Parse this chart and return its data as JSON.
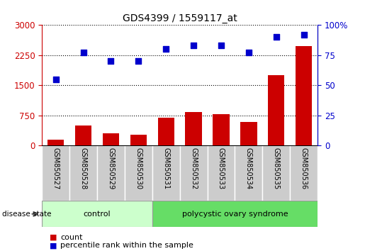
{
  "title": "GDS4399 / 1559117_at",
  "samples": [
    "GSM850527",
    "GSM850528",
    "GSM850529",
    "GSM850530",
    "GSM850531",
    "GSM850532",
    "GSM850533",
    "GSM850534",
    "GSM850535",
    "GSM850536"
  ],
  "counts": [
    150,
    500,
    310,
    270,
    700,
    830,
    780,
    590,
    1750,
    2480
  ],
  "percentiles": [
    55,
    77,
    70,
    70,
    80,
    83,
    83,
    77,
    90,
    92
  ],
  "bar_color": "#CC0000",
  "dot_color": "#0000CC",
  "left_yticks": [
    0,
    750,
    1500,
    2250,
    3000
  ],
  "right_yticks": [
    0,
    25,
    50,
    75,
    100
  ],
  "left_ylim": [
    0,
    3000
  ],
  "right_ylim": [
    0,
    100
  ],
  "left_tick_color": "#CC0000",
  "right_tick_color": "#0000CC",
  "tick_label_area_color": "#CCCCCC",
  "control_color": "#CCFFCC",
  "poly_color": "#66DD66",
  "control_count": 4,
  "legend_count_label": "count",
  "legend_pct_label": "percentile rank within the sample",
  "disease_state_label": "disease state"
}
